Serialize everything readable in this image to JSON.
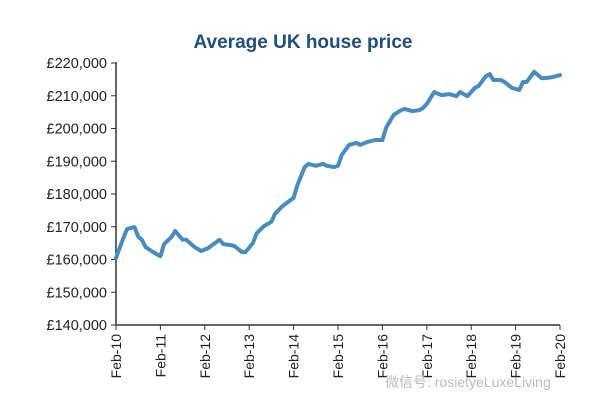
{
  "chart_data": {
    "type": "line",
    "title": "Average UK house price",
    "xlabel": "",
    "ylabel": "",
    "ylim": [
      140000,
      220000
    ],
    "yticks": [
      "£140,000",
      "£150,000",
      "£160,000",
      "£170,000",
      "£180,000",
      "£190,000",
      "£200,000",
      "£210,000",
      "£220,000"
    ],
    "xticks": [
      "Feb-10",
      "Feb-11",
      "Feb-12",
      "Feb-13",
      "Feb-14",
      "Feb-15",
      "Feb-16",
      "Feb-17",
      "Feb-18",
      "Feb-19",
      "Feb-20"
    ],
    "xlim": [
      "2010-02",
      "2020-02"
    ],
    "grid": false,
    "line_color": "#4a8bbd",
    "x": [
      "2010-02",
      "2010-04",
      "2010-05",
      "2010-07",
      "2010-08",
      "2010-09",
      "2010-10",
      "2010-12",
      "2011-02",
      "2011-03",
      "2011-05",
      "2011-06",
      "2011-08",
      "2011-09",
      "2011-11",
      "2012-01",
      "2012-03",
      "2012-04",
      "2012-06",
      "2012-07",
      "2012-09",
      "2012-10",
      "2012-12",
      "2013-01",
      "2013-03",
      "2013-04",
      "2013-06",
      "2013-08",
      "2013-09",
      "2013-11",
      "2014-02",
      "2014-03",
      "2014-05",
      "2014-06",
      "2014-08",
      "2014-10",
      "2014-11",
      "2015-01",
      "2015-02",
      "2015-03",
      "2015-05",
      "2015-07",
      "2015-08",
      "2015-10",
      "2015-12",
      "2016-02",
      "2016-03",
      "2016-05",
      "2016-07",
      "2016-08",
      "2016-10",
      "2016-12",
      "2017-01",
      "2017-02",
      "2017-04",
      "2017-06",
      "2017-08",
      "2017-10",
      "2017-11",
      "2018-01",
      "2018-03",
      "2018-04",
      "2018-06",
      "2018-07",
      "2018-08",
      "2018-10",
      "2018-11",
      "2019-01",
      "2019-03",
      "2019-04",
      "2019-05",
      "2019-07",
      "2019-09",
      "2019-10",
      "2019-12",
      "2020-02"
    ],
    "y": [
      160500,
      166600,
      169300,
      169900,
      167000,
      166000,
      163800,
      162300,
      161000,
      164700,
      166900,
      168700,
      166000,
      166000,
      164000,
      162600,
      163500,
      164400,
      166000,
      164700,
      164400,
      164100,
      162300,
      162300,
      165000,
      168000,
      170200,
      171500,
      174000,
      176300,
      178800,
      182700,
      188200,
      189200,
      188600,
      189200,
      188600,
      188200,
      188600,
      191900,
      195000,
      195600,
      195000,
      195900,
      196500,
      196500,
      200200,
      204100,
      205600,
      206000,
      205300,
      205600,
      206300,
      207500,
      211100,
      210200,
      210500,
      209900,
      211100,
      209900,
      212400,
      213000,
      216000,
      216600,
      214800,
      214800,
      214200,
      212400,
      211800,
      214200,
      214200,
      217300,
      215400,
      215400,
      215700,
      216300
    ]
  },
  "watermark": "微信号: rosietyeLuxeLiving"
}
